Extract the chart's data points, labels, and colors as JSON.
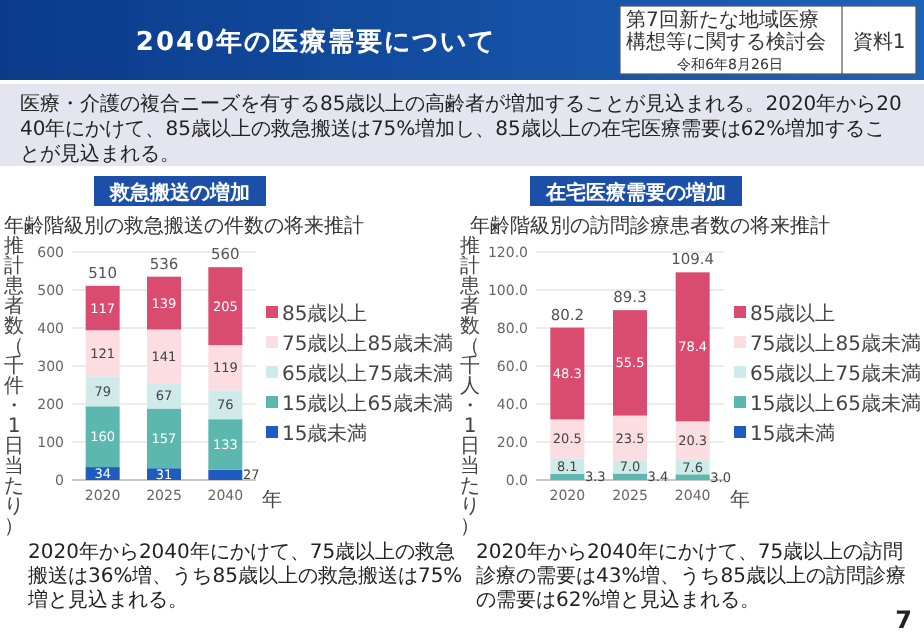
{
  "chart_data": [
    {
      "type": "other",
      "title": "2040年の医療需要について",
      "subtitle": "医療・介護の複合ニーズを有する85歳以上の高齢者が増加することが見込まれる。2020年から2040年にかけて、85歳以上の救急搬送は75%増加し、85歳以上の在宅医療需要は62%増加することが見込まれる。",
      "annotations": [
        "第7回新たな地域医療構想等に関する検討会",
        "令和6年8月26日",
        "資料1",
        "7"
      ]
    },
    {
      "type": "bar",
      "stacked": true,
      "title": "救急搬送の増加",
      "subtitle": "年齢階級別の救急搬送の件数の将来推計",
      "ylabel": "推計患者数（千件・1日当たり）",
      "xlabel": "年",
      "categories": [
        "2020",
        "2025",
        "2040"
      ],
      "ylim": [
        0,
        600
      ],
      "yticks": [
        0,
        100,
        200,
        300,
        400,
        500,
        600
      ],
      "grid": "y",
      "legend": "right",
      "data_labels": true,
      "totals": [
        "510",
        "536",
        "560"
      ],
      "series": [
        {
          "name": "15歳未満",
          "color": "#1f5cc0",
          "values": [
            34,
            31,
            27
          ]
        },
        {
          "name": "15歳以上65歳未満",
          "color": "#5cb8ae",
          "values": [
            160,
            157,
            133
          ]
        },
        {
          "name": "65歳以上75歳未満",
          "color": "#cfeae9",
          "values": [
            79,
            67,
            76
          ]
        },
        {
          "name": "75歳以上85歳未満",
          "color": "#fcdde2",
          "values": [
            121,
            141,
            119
          ]
        },
        {
          "name": "85歳以上",
          "color": "#d94b6f",
          "values": [
            117,
            139,
            205
          ]
        }
      ],
      "annotations": [
        "2020年から2040年にかけて、75歳以上の救急搬送は36%増、うち85歳以上の救急搬送は75%増と見込まれる。"
      ]
    },
    {
      "type": "bar",
      "stacked": true,
      "title": "在宅医療需要の増加",
      "subtitle": "年齢階級別の訪問診療患者数の将来推計",
      "ylabel": "推計患者数（千人・1日当たり）",
      "xlabel": "年",
      "categories": [
        "2020",
        "2025",
        "2040"
      ],
      "ylim": [
        0,
        120
      ],
      "yticks": [
        {
          "value": 0,
          "label": "0.0"
        },
        {
          "value": 20,
          "label": "20.0"
        },
        {
          "value": 40,
          "label": "40.0"
        },
        {
          "value": 60,
          "label": "60.0"
        },
        {
          "value": 80,
          "label": "80.0"
        },
        {
          "value": 100,
          "label": "100.0"
        },
        {
          "value": 120,
          "label": "120.0"
        }
      ],
      "grid": "y",
      "legend": "right",
      "totals": [
        "80.2",
        "89.3",
        "109.4"
      ],
      "series": [
        {
          "name": "15歳未満",
          "color": "#1f5cc0",
          "values": [
            0,
            0,
            0
          ],
          "value_labels": [
            null,
            null,
            null
          ]
        },
        {
          "name": "15歳以上65歳未満",
          "color": "#5cb8ae",
          "values": [
            3.3,
            3.4,
            3.0
          ],
          "value_labels": [
            "3.3",
            "3.4",
            "3.0"
          ]
        },
        {
          "name": "65歳以上75歳未満",
          "color": "#cfeae9",
          "values": [
            8.1,
            7.0,
            7.6
          ],
          "value_labels": [
            "8.1",
            "7.0",
            "7.6"
          ]
        },
        {
          "name": "75歳以上85歳未満",
          "color": "#fcdde2",
          "values": [
            20.5,
            23.5,
            20.3
          ],
          "value_labels": [
            "20.5",
            "23.5",
            "20.3"
          ]
        },
        {
          "name": "85歳以上",
          "color": "#d94b6f",
          "values": [
            48.3,
            55.5,
            78.4
          ],
          "value_labels": [
            "48.3",
            "55.5",
            "78.4"
          ]
        }
      ],
      "annotations": [
        "2020年から2040年にかけて、75歳以上の訪問診療の需要は43%増、うち85歳以上の訪問診療の需要は62%増と見込まれる。"
      ]
    }
  ]
}
